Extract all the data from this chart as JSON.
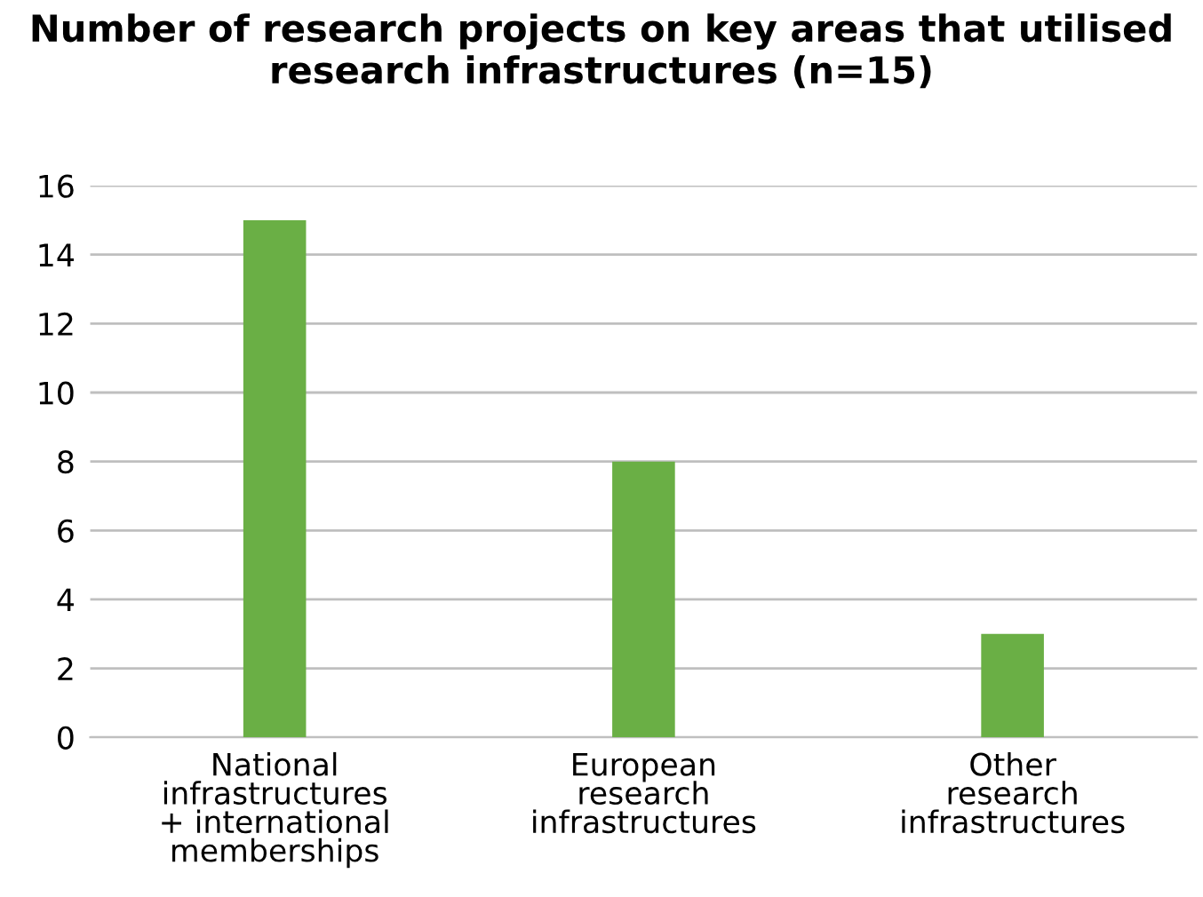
{
  "chart_data": {
    "type": "bar",
    "title": "Number of research projects on key areas that utilised research infrastructures (n=15)",
    "categories": [
      "National\ninfrastructures\n+ international\nmemberships",
      "European\nresearch\ninfrastructures",
      "Other\nresearch\ninfrastructures"
    ],
    "values": [
      15,
      8,
      3
    ],
    "color": "#6aaf45",
    "ylim": [
      0,
      16
    ],
    "yticks": [
      0,
      2,
      4,
      6,
      8,
      10,
      12,
      14,
      16
    ],
    "grid": "y",
    "legend": false
  }
}
